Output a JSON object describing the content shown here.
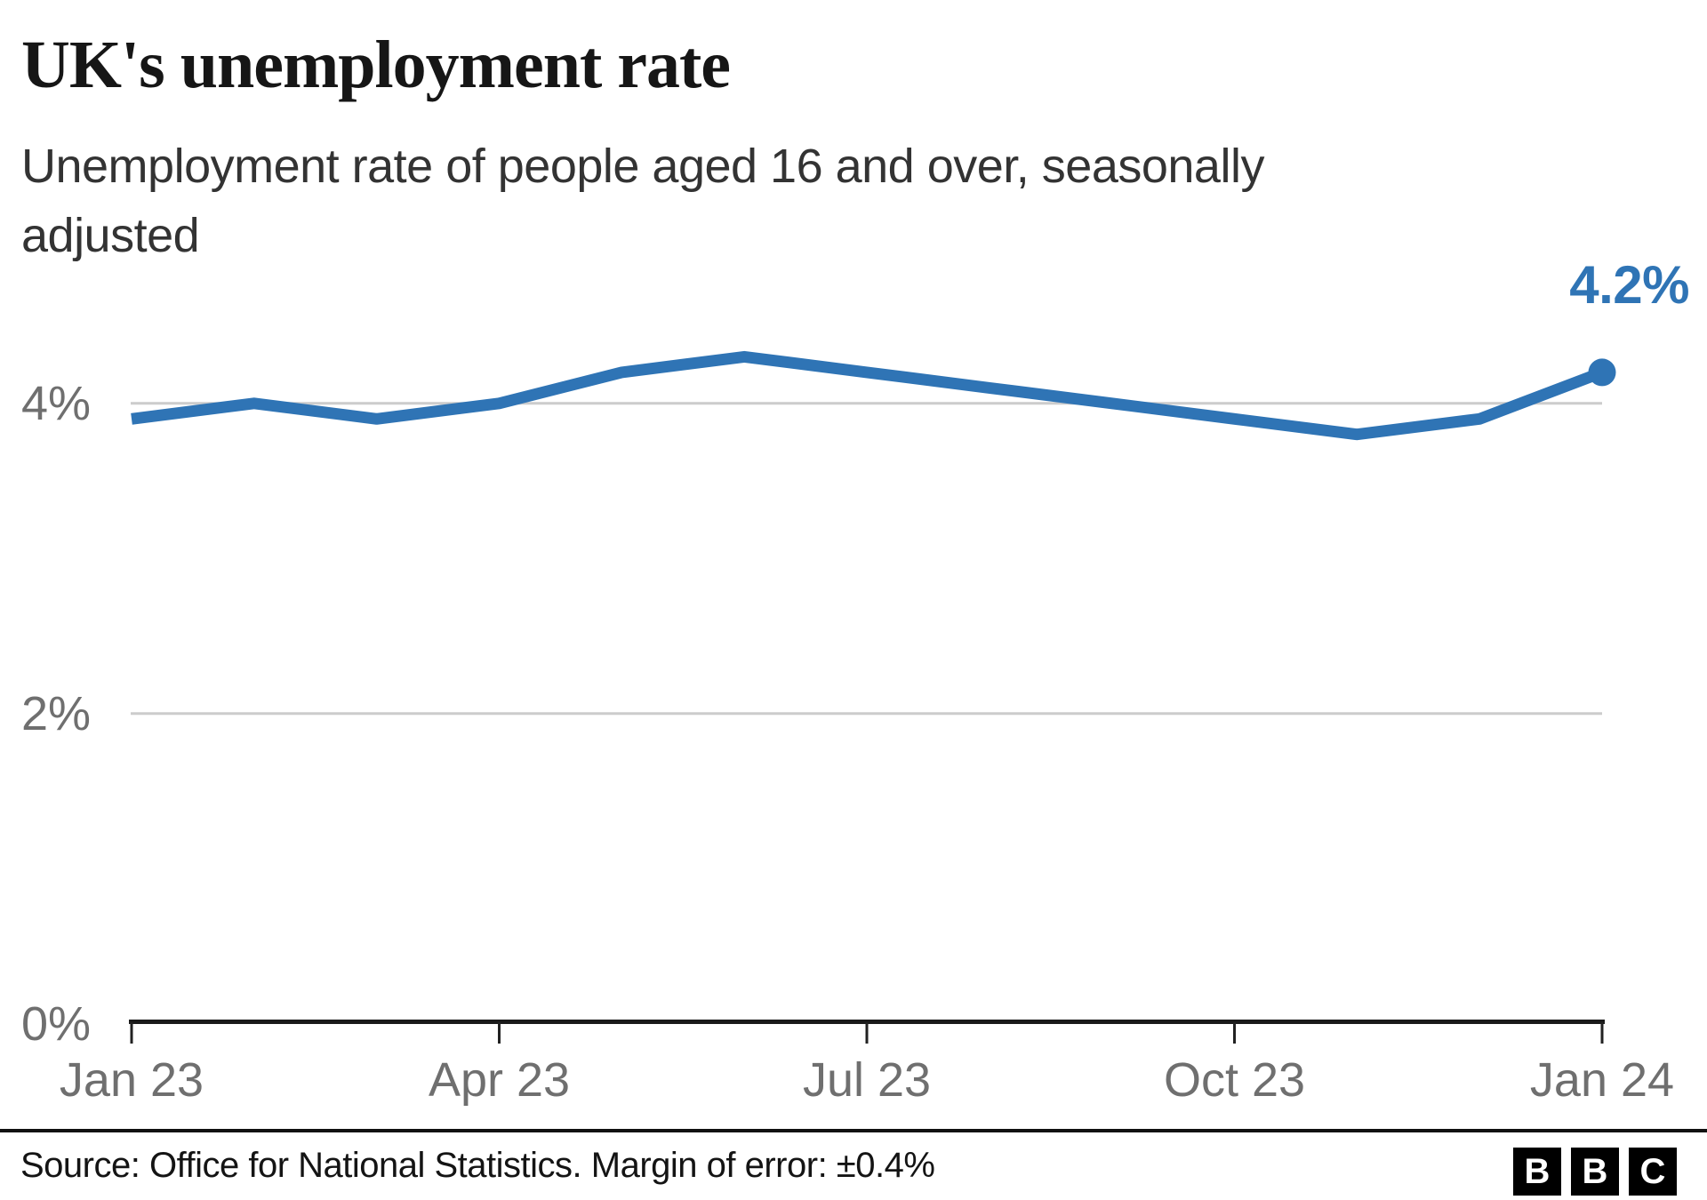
{
  "header": {
    "title": "UK's unemployment rate",
    "subtitle": "Unemployment rate of people aged 16 and over, seasonally adjusted"
  },
  "annotation": {
    "end_value_label": "4.2%"
  },
  "footer": {
    "source": "Source: Office for National Statistics. Margin of error: ±0.4%",
    "logo_letters": [
      "B",
      "B",
      "C"
    ]
  },
  "colors": {
    "line": "#2F74B5",
    "end_dot": "#2F74B5",
    "annotation": "#2F74B5",
    "gridline": "#CCCCCC",
    "axis": "#1A1A1A",
    "tick": "#222222",
    "axis_label_gray": "#6F6F6F"
  },
  "chart_data": {
    "type": "line",
    "title": "UK's unemployment rate",
    "subtitle": "Unemployment rate of people aged 16 and over, seasonally adjusted",
    "series_name": "Unemployment rate (%)",
    "x": [
      "Jan 23",
      "Feb 23",
      "Mar 23",
      "Apr 23",
      "May 23",
      "Jun 23",
      "Jul 23",
      "Aug 23",
      "Sep 23",
      "Oct 23",
      "Nov 23",
      "Dec 23",
      "Jan 24"
    ],
    "values": [
      3.9,
      4.0,
      3.9,
      4.0,
      4.2,
      4.3,
      4.2,
      4.1,
      4.0,
      3.9,
      3.8,
      3.9,
      4.2
    ],
    "x_tick_labels": [
      "Jan 23",
      "Apr 23",
      "Jul 23",
      "Oct 23",
      "Jan 24"
    ],
    "x_tick_indices": [
      0,
      3,
      6,
      9,
      12
    ],
    "y_ticks": [
      0,
      2,
      4
    ],
    "y_tick_labels": [
      "0%",
      "2%",
      "4%"
    ],
    "y_gridline_ticks": [
      2,
      4
    ],
    "ylim": [
      0,
      4.6
    ],
    "grid": "horizontal-only",
    "legend": "none",
    "end_dot": true,
    "end_label": "4.2%"
  }
}
